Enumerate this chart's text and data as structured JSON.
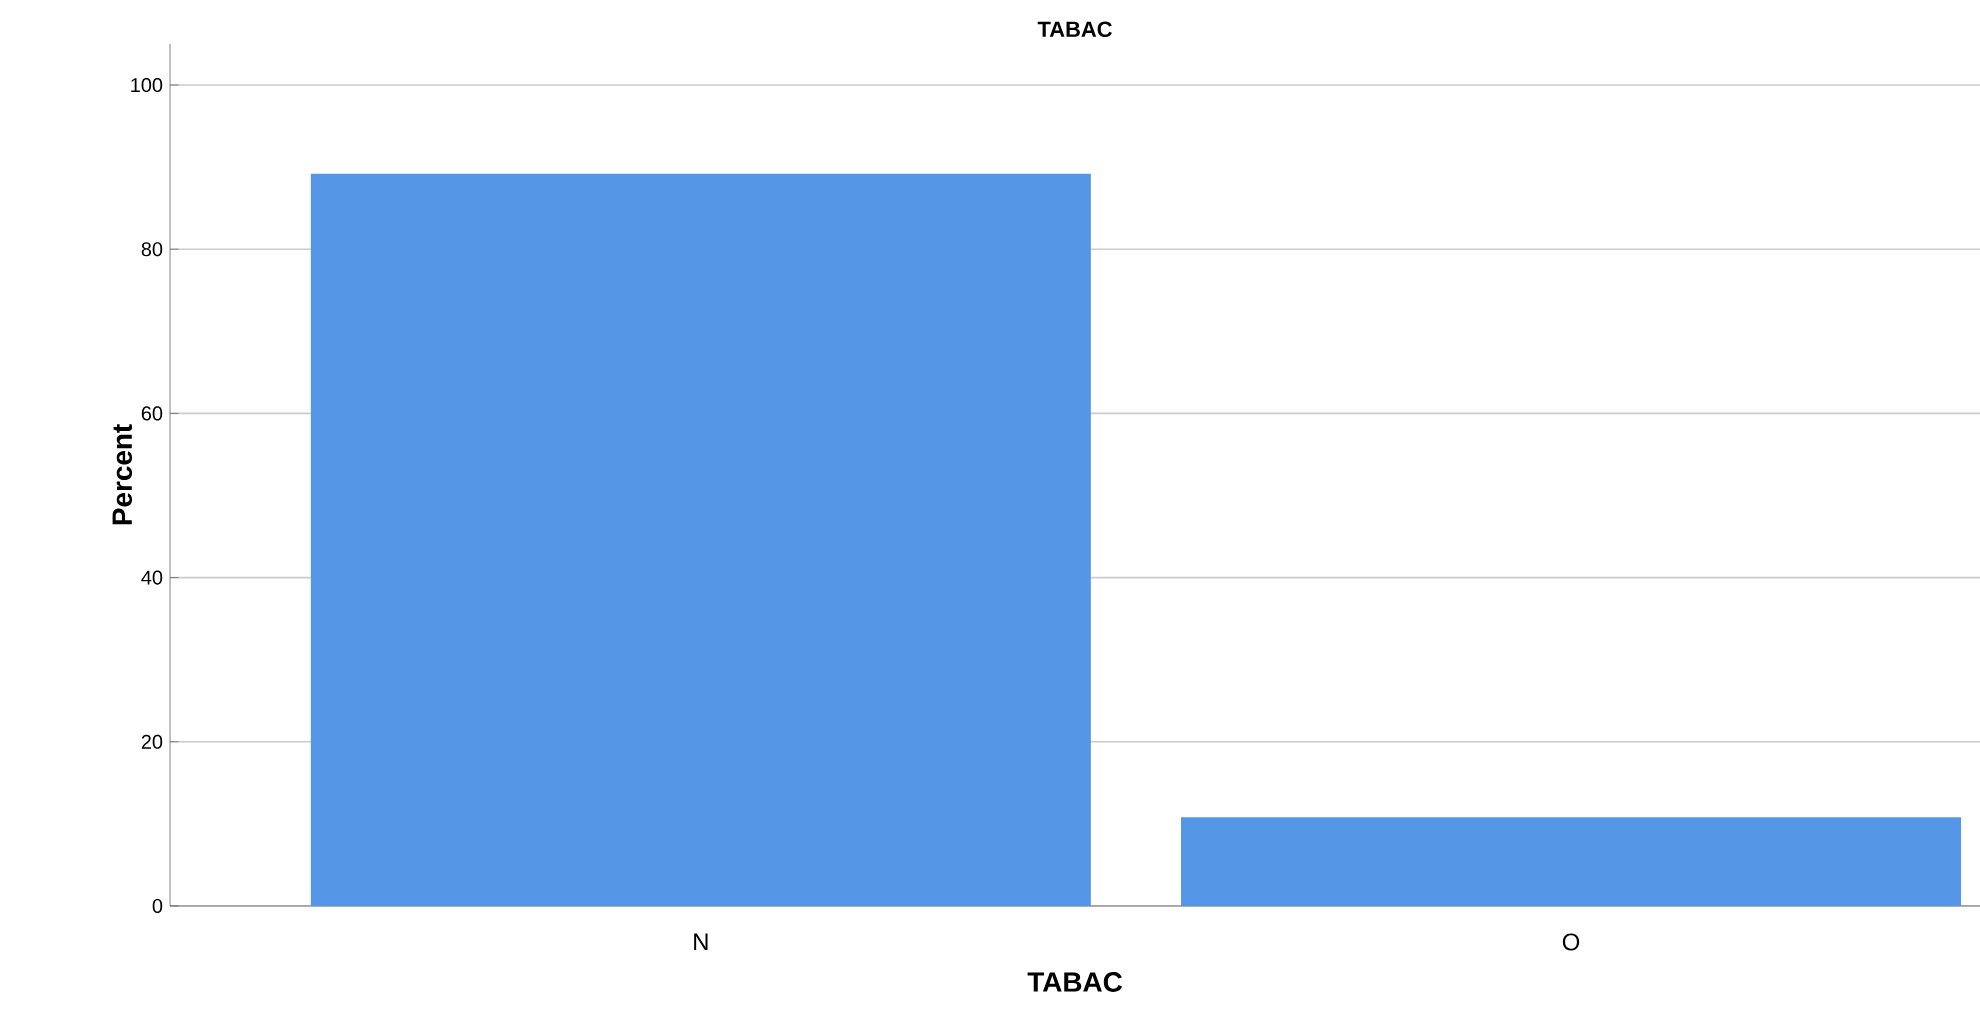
{
  "chart_data": {
    "type": "bar",
    "title": "TABAC",
    "xlabel": "TABAC",
    "ylabel": "Percent",
    "categories": [
      "N",
      "O"
    ],
    "values": [
      89.2,
      10.8
    ],
    "color": "#5596e6",
    "ylim": [
      0,
      105
    ],
    "yticks": [
      0,
      20,
      40,
      60,
      80,
      100
    ],
    "grid": "y"
  }
}
